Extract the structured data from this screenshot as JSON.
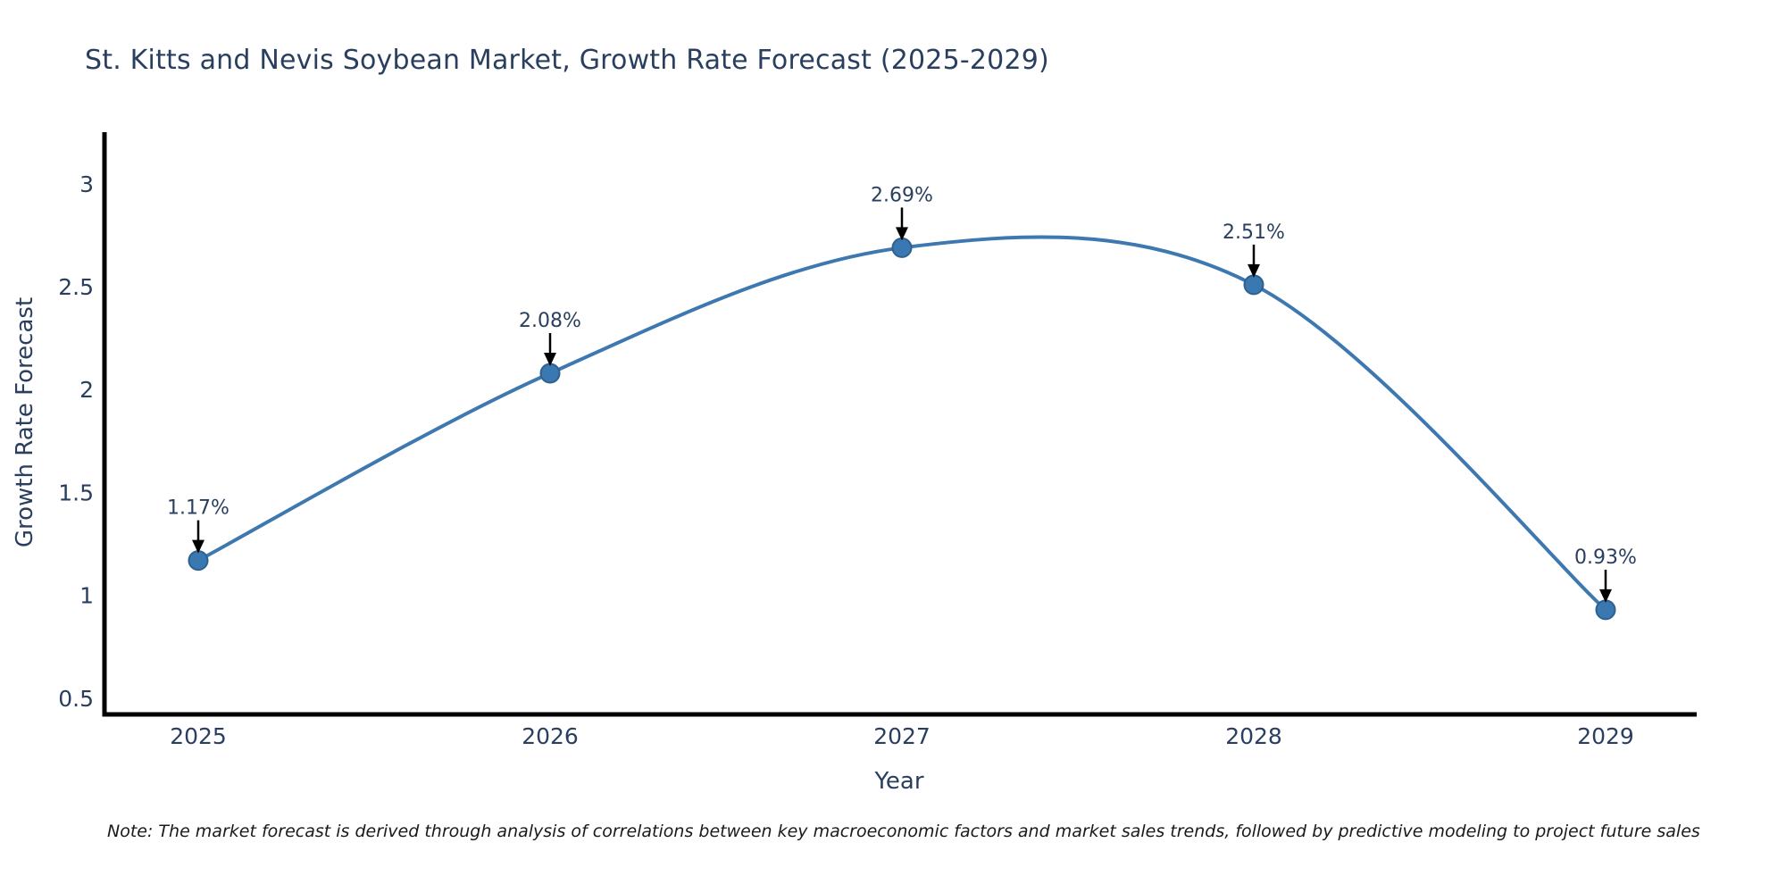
{
  "note": "Note: The market forecast is derived through analysis of correlations between key macroeconomic factors and market sales trends, followed by predictive modeling to project future sales",
  "chart_data": {
    "type": "line",
    "title": "St. Kitts and Nevis Soybean Market, Growth Rate Forecast (2025-2029)",
    "categories": [
      "2025",
      "2026",
      "2027",
      "2028",
      "2029"
    ],
    "values": [
      1.17,
      2.08,
      2.69,
      2.51,
      0.93
    ],
    "data_labels": [
      "1.17%",
      "2.08%",
      "2.69%",
      "2.51%",
      "0.93%"
    ],
    "xlabel": "Year",
    "ylabel": "Growth Rate Forecast",
    "ylim": [
      0.42,
      3.25
    ],
    "ytick_labels": [
      "0.5",
      "1",
      "1.5",
      "2",
      "2.5",
      "3"
    ],
    "line_shape": "spline",
    "grid": false,
    "legend": "none",
    "colors": {
      "line": "#3e78b0",
      "marker_fill": "#3a78b2",
      "marker_edge": "#2f608e",
      "axis": "#000000",
      "tick_text": "#2a3f5f",
      "annotation_text": "#2a3f5f",
      "arrow": "#000000",
      "note_text": "#1a1a1a",
      "background": "#ffffff"
    }
  }
}
